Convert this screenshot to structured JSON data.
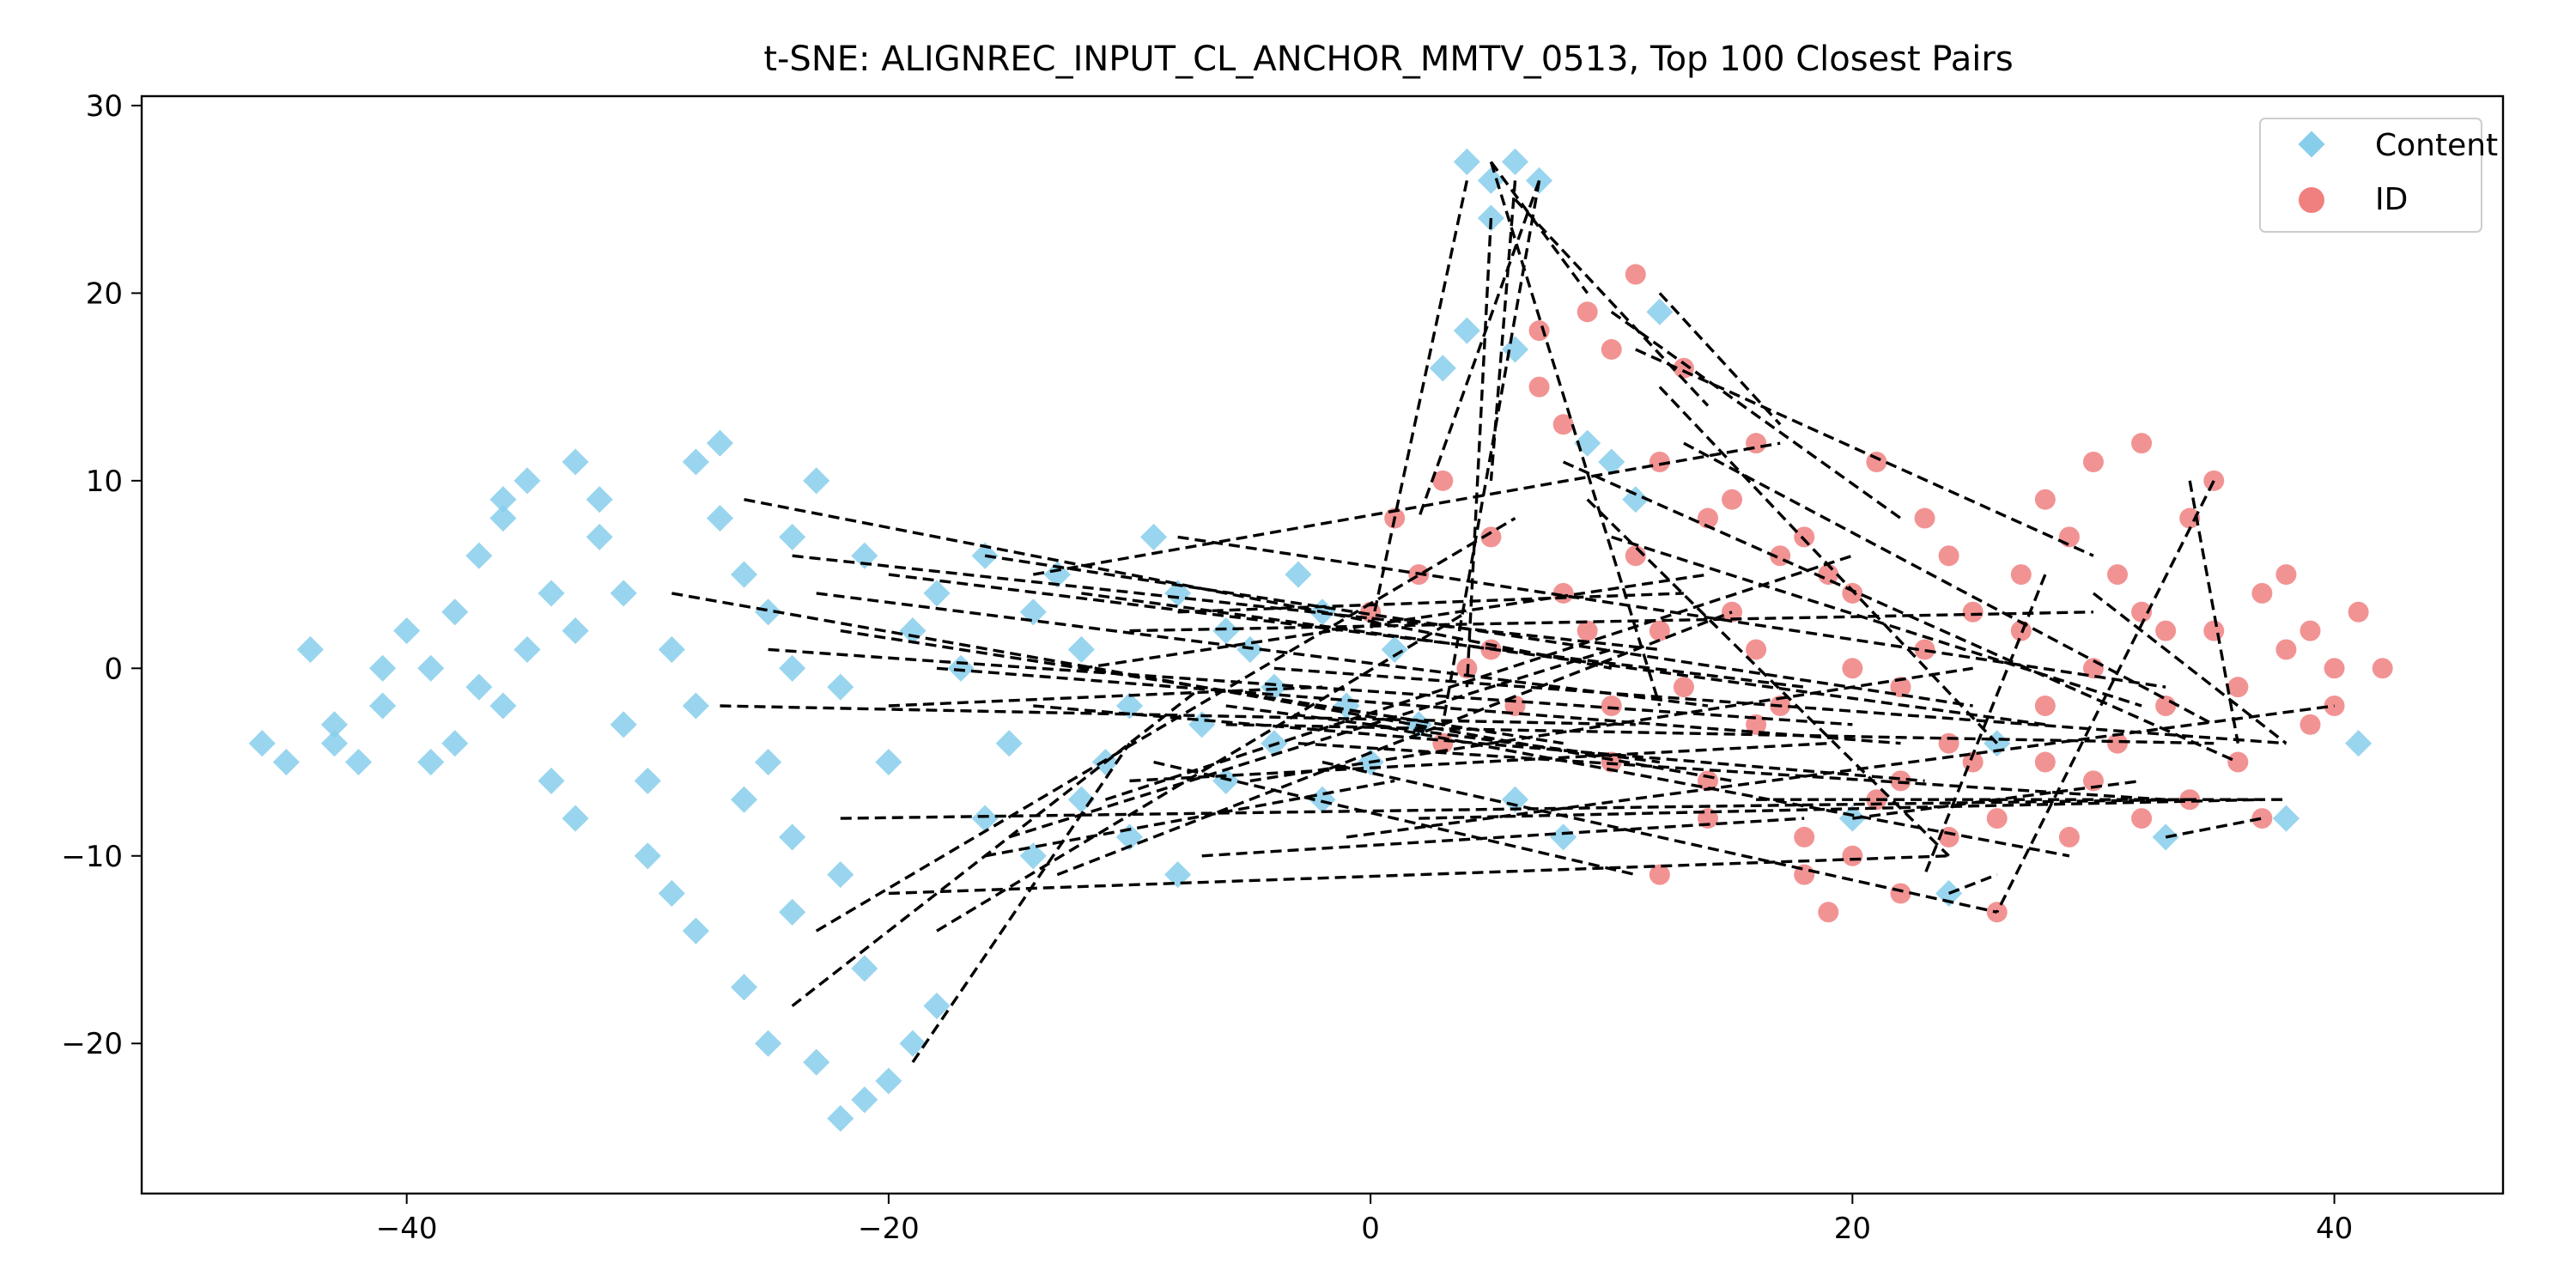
{
  "chart_data": {
    "type": "scatter",
    "title": "t-SNE: ALIGNREC_INPUT_CL_ANCHOR_MMTV_0513, Top 100 Closest Pairs",
    "xlabel": "",
    "ylabel": "",
    "xlim": [
      -51,
      47
    ],
    "ylim": [
      -28,
      30.5
    ],
    "x_ticks": [
      -40,
      -20,
      0,
      20,
      40
    ],
    "x_tick_labels": [
      "−40",
      "−20",
      "0",
      "20",
      "40"
    ],
    "y_ticks": [
      -20,
      -10,
      0,
      10,
      20,
      30
    ],
    "y_tick_labels": [
      "−20",
      "−10",
      "0",
      "10",
      "20",
      "30"
    ],
    "grid": false,
    "legend_position": "top-right",
    "series": [
      {
        "name": "Content",
        "marker": "diamond",
        "color": "#87CEEB",
        "points": [
          [
            -46,
            -4
          ],
          [
            -44,
            1
          ],
          [
            -43,
            -3
          ],
          [
            -42,
            -5
          ],
          [
            -41,
            -2
          ],
          [
            -40,
            2
          ],
          [
            -39,
            0
          ],
          [
            -38,
            -4
          ],
          [
            -37,
            6
          ],
          [
            -36,
            8
          ],
          [
            -35,
            10
          ],
          [
            -34,
            4
          ],
          [
            -33,
            2
          ],
          [
            -32,
            9
          ],
          [
            -31,
            -3
          ],
          [
            -30,
            -6
          ],
          [
            -29,
            1
          ],
          [
            -28,
            11
          ],
          [
            -27,
            12
          ],
          [
            -26,
            5
          ],
          [
            -25,
            3
          ],
          [
            -24,
            7
          ],
          [
            -23,
            10
          ],
          [
            -22,
            -1
          ],
          [
            -21,
            6
          ],
          [
            -20,
            -5
          ],
          [
            -19,
            2
          ],
          [
            -18,
            4
          ],
          [
            -16,
            6
          ],
          [
            -14,
            3
          ],
          [
            -12,
            1
          ],
          [
            -10,
            -2
          ],
          [
            -8,
            4
          ],
          [
            -6,
            2
          ],
          [
            -4,
            -1
          ],
          [
            -2,
            3
          ],
          [
            -30,
            -10
          ],
          [
            -28,
            -14
          ],
          [
            -26,
            -17
          ],
          [
            -25,
            -20
          ],
          [
            -24,
            -13
          ],
          [
            -23,
            -21
          ],
          [
            -22,
            -24
          ],
          [
            -21,
            -23
          ],
          [
            -20,
            -22
          ],
          [
            -19,
            -20
          ],
          [
            -18,
            -18
          ],
          [
            -21,
            -16
          ],
          [
            -22,
            -11
          ],
          [
            -24,
            -9
          ],
          [
            -16,
            -8
          ],
          [
            -14,
            -10
          ],
          [
            -12,
            -7
          ],
          [
            -10,
            -9
          ],
          [
            -8,
            -11
          ],
          [
            -6,
            -6
          ],
          [
            -4,
            -4
          ],
          [
            -2,
            -7
          ],
          [
            0,
            -5
          ],
          [
            2,
            -3
          ],
          [
            4,
            27
          ],
          [
            5,
            26
          ],
          [
            6,
            27
          ],
          [
            7,
            26
          ],
          [
            5,
            24
          ],
          [
            4,
            18
          ],
          [
            3,
            16
          ],
          [
            6,
            17
          ],
          [
            9,
            12
          ],
          [
            10,
            11
          ],
          [
            12,
            19
          ],
          [
            11,
            9
          ],
          [
            -36,
            -2
          ],
          [
            -34,
            -6
          ],
          [
            -38,
            3
          ],
          [
            -32,
            7
          ],
          [
            -33,
            -8
          ],
          [
            -29,
            -12
          ],
          [
            -27,
            8
          ],
          [
            -25,
            -5
          ],
          [
            -31,
            4
          ],
          [
            -35,
            1
          ],
          [
            -37,
            -1
          ],
          [
            -39,
            -5
          ],
          [
            -41,
            0
          ],
          [
            -43,
            -4
          ],
          [
            -45,
            -5
          ],
          [
            -28,
            -2
          ],
          [
            -26,
            -7
          ],
          [
            -24,
            0
          ],
          [
            -17,
            0
          ],
          [
            -15,
            -4
          ],
          [
            -13,
            5
          ],
          [
            -11,
            -5
          ],
          [
            -9,
            7
          ],
          [
            -7,
            -3
          ],
          [
            -5,
            1
          ],
          [
            -3,
            5
          ],
          [
            -1,
            -2
          ],
          [
            1,
            1
          ],
          [
            20,
            -8
          ],
          [
            24,
            -12
          ],
          [
            33,
            -9
          ],
          [
            38,
            -8
          ],
          [
            41,
            -4
          ],
          [
            26,
            -4
          ],
          [
            6,
            -7
          ],
          [
            8,
            -9
          ],
          [
            -36,
            9
          ],
          [
            -33,
            11
          ]
        ]
      },
      {
        "name": "ID",
        "marker": "circle",
        "color": "#F08080",
        "points": [
          [
            0,
            3
          ],
          [
            1,
            8
          ],
          [
            2,
            5
          ],
          [
            3,
            10
          ],
          [
            4,
            0
          ],
          [
            5,
            7
          ],
          [
            6,
            -2
          ],
          [
            7,
            15
          ],
          [
            8,
            4
          ],
          [
            9,
            19
          ],
          [
            10,
            -5
          ],
          [
            11,
            21
          ],
          [
            12,
            2
          ],
          [
            13,
            16
          ],
          [
            14,
            -8
          ],
          [
            15,
            9
          ],
          [
            16,
            -3
          ],
          [
            17,
            6
          ],
          [
            18,
            -11
          ],
          [
            19,
            -13
          ],
          [
            20,
            0
          ],
          [
            21,
            11
          ],
          [
            22,
            -6
          ],
          [
            23,
            8
          ],
          [
            24,
            -9
          ],
          [
            25,
            3
          ],
          [
            26,
            -13
          ],
          [
            27,
            5
          ],
          [
            28,
            -2
          ],
          [
            29,
            7
          ],
          [
            30,
            11
          ],
          [
            31,
            -4
          ],
          [
            32,
            12
          ],
          [
            33,
            2
          ],
          [
            34,
            -7
          ],
          [
            35,
            10
          ],
          [
            36,
            -1
          ],
          [
            37,
            4
          ],
          [
            38,
            1
          ],
          [
            39,
            -3
          ],
          [
            40,
            0
          ],
          [
            41,
            3
          ],
          [
            42,
            0
          ],
          [
            12,
            -11
          ],
          [
            14,
            -6
          ],
          [
            16,
            12
          ],
          [
            18,
            -9
          ],
          [
            20,
            4
          ],
          [
            22,
            -1
          ],
          [
            24,
            6
          ],
          [
            26,
            -8
          ],
          [
            28,
            9
          ],
          [
            30,
            -6
          ],
          [
            32,
            3
          ],
          [
            34,
            8
          ],
          [
            36,
            -5
          ],
          [
            38,
            5
          ],
          [
            40,
            -2
          ],
          [
            11,
            6
          ],
          [
            13,
            -1
          ],
          [
            15,
            3
          ],
          [
            17,
            -2
          ],
          [
            19,
            5
          ],
          [
            21,
            -7
          ],
          [
            23,
            1
          ],
          [
            25,
            -5
          ],
          [
            27,
            2
          ],
          [
            29,
            -9
          ],
          [
            31,
            5
          ],
          [
            33,
            -2
          ],
          [
            35,
            2
          ],
          [
            37,
            -8
          ],
          [
            39,
            2
          ],
          [
            7,
            18
          ],
          [
            8,
            13
          ],
          [
            10,
            17
          ],
          [
            12,
            11
          ],
          [
            14,
            8
          ],
          [
            16,
            1
          ],
          [
            18,
            7
          ],
          [
            9,
            2
          ],
          [
            10,
            -2
          ],
          [
            5,
            1
          ],
          [
            3,
            -4
          ],
          [
            20,
            -10
          ],
          [
            22,
            -12
          ],
          [
            24,
            -4
          ],
          [
            28,
            -5
          ],
          [
            30,
            0
          ],
          [
            32,
            -8
          ]
        ]
      }
    ],
    "pairs": [
      [
        -26,
        9,
        10,
        0
      ],
      [
        -24,
        6,
        12,
        1
      ],
      [
        -23,
        4,
        14,
        -2
      ],
      [
        -22,
        2,
        8,
        -4
      ],
      [
        -27,
        -2,
        11,
        -3
      ],
      [
        -29,
        4,
        15,
        -6
      ],
      [
        -25,
        1,
        20,
        -3
      ],
      [
        -20,
        5,
        18,
        -1
      ],
      [
        -18,
        0,
        22,
        -4
      ],
      [
        -16,
        6,
        25,
        -2
      ],
      [
        -14,
        -2,
        23,
        -6
      ],
      [
        -22,
        -8,
        34,
        -7
      ],
      [
        -20,
        -12,
        24,
        -10
      ],
      [
        -19,
        -21,
        -10,
        -4
      ],
      [
        -23,
        -14,
        6,
        8
      ],
      [
        -24,
        -18,
        -7,
        -1
      ],
      [
        -12,
        4,
        28,
        -3
      ],
      [
        -10,
        2,
        30,
        3
      ],
      [
        -8,
        7,
        33,
        -1
      ],
      [
        -6,
        -3,
        35,
        -4
      ],
      [
        -4,
        0,
        38,
        -4
      ],
      [
        -2,
        -5,
        26,
        -13
      ],
      [
        0,
        -3,
        29,
        -10
      ],
      [
        2,
        -8,
        37,
        -7
      ],
      [
        5,
        27,
        9,
        20
      ],
      [
        6,
        26,
        5,
        10
      ],
      [
        7,
        26,
        2,
        8
      ],
      [
        4,
        26,
        0,
        2
      ],
      [
        5,
        24,
        4,
        -1
      ],
      [
        6,
        25,
        14,
        14
      ],
      [
        7,
        26,
        3,
        -3
      ],
      [
        5,
        27,
        12,
        -2
      ],
      [
        12,
        20,
        17,
        13
      ],
      [
        10,
        19,
        22,
        8
      ],
      [
        11,
        17,
        30,
        6
      ],
      [
        12,
        15,
        26,
        -4
      ],
      [
        13,
        12,
        35,
        -3
      ],
      [
        8,
        11,
        36,
        -5
      ],
      [
        9,
        9,
        24,
        -10
      ],
      [
        10,
        7,
        32,
        -2
      ],
      [
        -15,
        -9,
        10,
        1
      ],
      [
        -13,
        -11,
        15,
        3
      ],
      [
        -11,
        -7,
        20,
        6
      ],
      [
        -9,
        -5,
        11,
        -11
      ],
      [
        -7,
        -10,
        18,
        -8
      ],
      [
        -5,
        -6,
        25,
        0
      ],
      [
        -3,
        -4,
        33,
        -7
      ],
      [
        -1,
        -9,
        40,
        -2
      ],
      [
        34,
        10,
        36,
        -4
      ],
      [
        35,
        10,
        26,
        -13
      ],
      [
        28,
        5,
        23,
        -11
      ],
      [
        30,
        4,
        38,
        -4
      ],
      [
        20,
        -8,
        32,
        -6
      ],
      [
        24,
        -12,
        26,
        -11
      ],
      [
        16,
        -7,
        38,
        -7
      ],
      [
        33,
        -9,
        37,
        -8
      ],
      [
        -18,
        -14,
        4,
        3
      ],
      [
        -20,
        -2,
        -2,
        -1
      ],
      [
        -16,
        -10,
        1,
        -6
      ],
      [
        -14,
        5,
        17,
        12
      ],
      [
        -12,
        0,
        14,
        5
      ],
      [
        -10,
        -6,
        19,
        -4
      ],
      [
        -8,
        3,
        13,
        4
      ],
      [
        -6,
        -2,
        12,
        -5
      ]
    ]
  }
}
